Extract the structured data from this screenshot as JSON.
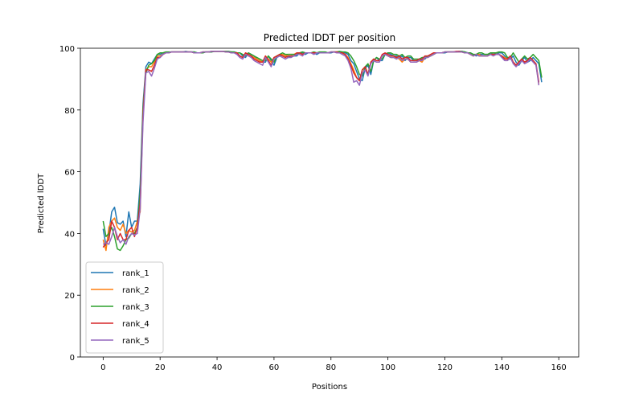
{
  "chart_data": {
    "type": "line",
    "title": "Predicted lDDT per position",
    "xlabel": "Positions",
    "ylabel": "Predicted lDDT",
    "xlim": [
      -8,
      167
    ],
    "ylim": [
      0,
      100
    ],
    "xticks": [
      "0",
      "20",
      "40",
      "60",
      "80",
      "100",
      "120",
      "140",
      "160"
    ],
    "yticks": [
      "0",
      "20",
      "40",
      "60",
      "80",
      "100"
    ],
    "grid": false,
    "legend_position": "lower-left",
    "series": [
      {
        "name": "rank_1",
        "color": "#1f77b4",
        "values": [
          41.5,
          36,
          40,
          47,
          48.5,
          43.5,
          43,
          44,
          39,
          47,
          42,
          44,
          44,
          56,
          82,
          94,
          95.5,
          95,
          96.5,
          98,
          98,
          98.5,
          98.5,
          98.5,
          98.8,
          98.8,
          98.8,
          98.8,
          98.8,
          99,
          98.8,
          98.8,
          98.8,
          98.5,
          98.5,
          98.5,
          98.8,
          98.8,
          98.8,
          99,
          99,
          99,
          99,
          99,
          99,
          98.8,
          98.8,
          98.5,
          98.5,
          97.5,
          97,
          98.5,
          98,
          97.5,
          96.5,
          96,
          95.5,
          95.5,
          97.5,
          96,
          94.5,
          97,
          97.5,
          98,
          97.5,
          97,
          97.5,
          97.5,
          97.5,
          98.5,
          98.5,
          98,
          98.5,
          98.5,
          98.5,
          98,
          98.5,
          98.5,
          98.5,
          98.5,
          98.5,
          98.8,
          98.8,
          98.8,
          98.8,
          98.5,
          98,
          96,
          95,
          92.5,
          90,
          89.5,
          93.5,
          94.5,
          91.5,
          96,
          97,
          96,
          96,
          98,
          98.5,
          98,
          97.5,
          97.5,
          97,
          97.5,
          96,
          97,
          97,
          96,
          96,
          96,
          96.5,
          96.5,
          97.5,
          97.5,
          98,
          98.5,
          98.5,
          98.5,
          98.5,
          98.8,
          98.8,
          98.8,
          98.8,
          99,
          99,
          98.8,
          98.5,
          98.5,
          98,
          97.5,
          98,
          98,
          98,
          98,
          98,
          98.5,
          98,
          98.5,
          98.5,
          97.5,
          96.5,
          96.5,
          97.5,
          95.5,
          94.5,
          96,
          97,
          95.5,
          96,
          97,
          96,
          95,
          89
        ]
      },
      {
        "name": "rank_2",
        "color": "#ff7f0e",
        "values": [
          38,
          34.5,
          42,
          44,
          45,
          42,
          41,
          43,
          40,
          41,
          40.5,
          41,
          44,
          47,
          80,
          93,
          94,
          94,
          95.5,
          97.5,
          97.5,
          98,
          98.5,
          98.5,
          98.8,
          98.8,
          98.8,
          98.8,
          98.8,
          98.8,
          98.8,
          98.8,
          98.5,
          98.5,
          98.5,
          98.8,
          98.8,
          98.8,
          99,
          99,
          99,
          99,
          99,
          99,
          98.8,
          98.8,
          98.5,
          98.5,
          97.5,
          97,
          98.5,
          98,
          97.5,
          97,
          96.5,
          96,
          95.5,
          97.5,
          96.5,
          95.5,
          97,
          97.5,
          98,
          98,
          97.5,
          98,
          98,
          98,
          98.5,
          98.5,
          98,
          98.5,
          98.5,
          98.5,
          98.5,
          98.5,
          98.5,
          98.5,
          98.5,
          98.5,
          98.8,
          98.8,
          98.8,
          98.5,
          98.5,
          98,
          97,
          95,
          93,
          90.5,
          89.5,
          93,
          94,
          91.5,
          95.5,
          96.5,
          96,
          96,
          97.5,
          98,
          97.5,
          97,
          97,
          97,
          96.5,
          95.5,
          96.5,
          96.5,
          95.5,
          95.5,
          95.5,
          96,
          95.5,
          97,
          97,
          97.5,
          98,
          98.5,
          98.5,
          98.5,
          98.8,
          98.8,
          98.8,
          98.8,
          98.8,
          98.8,
          98.8,
          98.5,
          98.5,
          98,
          97.5,
          98,
          98,
          97.5,
          97.5,
          97.5,
          98,
          98,
          98,
          98,
          97.5,
          97,
          96.5,
          97.5,
          95.5,
          94.5,
          95.5,
          96.5,
          95.5,
          96,
          97,
          96,
          94.5,
          88.5
        ]
      },
      {
        "name": "rank_3",
        "color": "#2ca02c",
        "values": [
          44,
          39,
          40,
          42,
          39,
          35,
          34.5,
          36,
          38,
          38.5,
          40,
          40,
          42,
          53,
          80,
          92,
          94.5,
          95,
          96,
          98,
          98.5,
          98.5,
          98.8,
          98.8,
          98.8,
          98.8,
          98.8,
          98.8,
          98.8,
          98.8,
          98.8,
          98.8,
          98.8,
          98.5,
          98.5,
          98.5,
          98.8,
          98.8,
          98.8,
          99,
          99,
          99,
          99,
          99,
          99,
          98.8,
          98.8,
          98.5,
          98.5,
          98,
          97.5,
          98.5,
          98,
          97.5,
          97,
          96.5,
          96,
          96,
          97.5,
          96.5,
          95.5,
          97.5,
          98,
          98.5,
          98,
          98,
          98,
          98,
          98,
          98.5,
          98.8,
          98.5,
          98.5,
          98.5,
          98.8,
          98.5,
          98.8,
          98.8,
          98.8,
          98.5,
          98.8,
          98.8,
          98.8,
          99,
          98.8,
          98.8,
          98.5,
          97.5,
          96,
          94,
          91.5,
          91,
          94,
          95,
          92.5,
          96,
          97,
          96.5,
          96.5,
          98,
          98.5,
          98.5,
          98,
          98,
          97.5,
          98,
          97,
          97.5,
          97.5,
          96.5,
          96.5,
          96.5,
          97,
          97,
          97.5,
          97.5,
          98,
          98.5,
          98.5,
          98.5,
          98.8,
          98.8,
          98.8,
          98.8,
          98.8,
          99,
          99,
          98.8,
          98.5,
          98.5,
          98,
          98,
          98.5,
          98.5,
          98,
          98,
          98.5,
          98.5,
          98.5,
          98.8,
          98.8,
          98.5,
          97,
          97,
          98.5,
          97,
          95.5,
          96.5,
          97.5,
          96.5,
          97,
          98,
          97,
          96,
          90.5
        ]
      },
      {
        "name": "rank_4",
        "color": "#d62728",
        "values": [
          35.5,
          37,
          38,
          44,
          42,
          38,
          40,
          38,
          38,
          41,
          42,
          39,
          42,
          50,
          78,
          93,
          93,
          92.5,
          94.5,
          97,
          97,
          98,
          98.5,
          98.5,
          98.8,
          98.8,
          98.8,
          98.8,
          98.8,
          98.8,
          98.8,
          98.8,
          98.5,
          98.5,
          98.5,
          98.8,
          98.8,
          98.8,
          99,
          99,
          99,
          99,
          99,
          98.8,
          98.8,
          98.5,
          98.5,
          98.5,
          97.5,
          97,
          98.5,
          98,
          97.5,
          96.5,
          96,
          95.5,
          95.5,
          97.5,
          96,
          94.5,
          97,
          97.5,
          98,
          97.5,
          97,
          97.5,
          97.5,
          97.5,
          98.5,
          98.5,
          98,
          98.5,
          98.5,
          98.5,
          98.5,
          98.5,
          98.5,
          98.5,
          98.5,
          98.5,
          98.8,
          98.8,
          98.8,
          98.5,
          98.5,
          98,
          96.5,
          94.5,
          92,
          90.5,
          89.5,
          93,
          94,
          91.5,
          95.5,
          96.5,
          96,
          96,
          98,
          98.5,
          98,
          97.5,
          97.5,
          97,
          97.5,
          96.5,
          97,
          97,
          96,
          96,
          96,
          96.5,
          96.5,
          97.5,
          97.5,
          98,
          98.5,
          98.5,
          98.5,
          98.5,
          98.8,
          98.8,
          98.8,
          98.8,
          99,
          99,
          98.8,
          98.5,
          98.5,
          98,
          97.5,
          98,
          97.5,
          97.5,
          97.5,
          97.5,
          98,
          98,
          98,
          98,
          97.5,
          96.5,
          96.5,
          97.5,
          95.5,
          94.5,
          95.5,
          96.5,
          95.5,
          96,
          97,
          96,
          95,
          89
        ]
      },
      {
        "name": "rank_5",
        "color": "#9467bd",
        "values": [
          36.5,
          37,
          36.5,
          39,
          42,
          39,
          37,
          38,
          36.5,
          39,
          40,
          39.5,
          40,
          48,
          76,
          92,
          92.5,
          91,
          93.5,
          96.5,
          97,
          98,
          98.5,
          98.5,
          98.8,
          98.8,
          98.8,
          98.8,
          98.8,
          98.8,
          98.8,
          98.8,
          98.5,
          98.5,
          98.5,
          98.8,
          98.8,
          98.8,
          99,
          99,
          99,
          99,
          99,
          98.8,
          98.8,
          98.5,
          98.5,
          98,
          97,
          96.5,
          98,
          97.5,
          97,
          96,
          95.5,
          95,
          94.5,
          97,
          95.5,
          94,
          96.5,
          97,
          97.5,
          97,
          96.5,
          97,
          97,
          97.5,
          98,
          98,
          97.5,
          98.5,
          98.5,
          98.5,
          98,
          98.5,
          98.5,
          98.5,
          98.5,
          98.5,
          98.8,
          98.8,
          98.5,
          98.5,
          98,
          97.5,
          96,
          93.5,
          89,
          89.5,
          88,
          92,
          93,
          91,
          95,
          96,
          95.5,
          95.5,
          97.5,
          98,
          97.5,
          97,
          97,
          96.5,
          97,
          96,
          96.5,
          96.5,
          95.5,
          95.5,
          95.5,
          96,
          96,
          97,
          97,
          97.5,
          98,
          98.5,
          98.5,
          98.5,
          98.8,
          98.8,
          98.8,
          98.8,
          98.8,
          98.8,
          98.8,
          98.5,
          98.5,
          98,
          97.5,
          98,
          97.5,
          97.5,
          97.5,
          97.5,
          98,
          97.5,
          98,
          98,
          97,
          96,
          96,
          97,
          95,
          94,
          95,
          96,
          95,
          95.5,
          96.5,
          95.5,
          94.5,
          88
        ]
      }
    ]
  }
}
